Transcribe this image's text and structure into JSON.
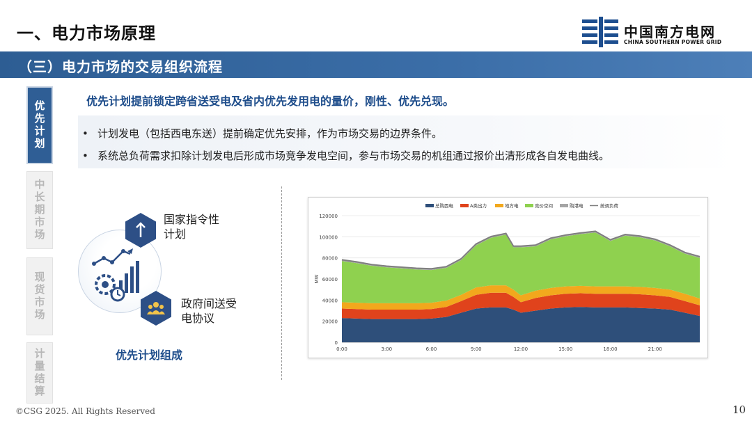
{
  "header": {
    "title": "一、电力市场原理",
    "logo_cn": "中国南方电网",
    "logo_en": "CHINA SOUTHERN POWER GRID"
  },
  "section": {
    "title": "（三）电力市场的交易组织流程"
  },
  "tabs": [
    {
      "label": "优先计划",
      "active": true
    },
    {
      "label": "中长期市场",
      "active": false
    },
    {
      "label": "现货市场",
      "active": false
    },
    {
      "label": "计量结算",
      "active": false
    }
  ],
  "headline": "优先计划提前锁定跨省送受电及省内优先发用电的量价，刚性、优先兑现。",
  "bullets": [
    {
      "dot": "•",
      "text": "计划发电（包括西电东送）提前确定优先安排，作为市场交易的边界条件。"
    },
    {
      "dot": "•",
      "text": "系统总负荷需求扣除计划发电后形成市场竞争发电空间，参与市场交易的机组通过报价出清形成各自发电曲线。"
    }
  ],
  "diagram": {
    "item1": "国家指令性计划",
    "item1_line1": "国家指令性",
    "item1_line2": "计划",
    "item2_line1": "政府间送受",
    "item2_line2": "电协议",
    "caption": "优先计划组成",
    "icons": [
      "up-arrow-icon",
      "analytics-gears-icon",
      "people-group-icon"
    ]
  },
  "chart_data": {
    "type": "area",
    "stacked": true,
    "x": [
      "0:00",
      "1:00",
      "2:00",
      "3:00",
      "4:00",
      "5:00",
      "6:00",
      "7:00",
      "8:00",
      "9:00",
      "10:00",
      "11:00",
      "11:30",
      "12:00",
      "13:00",
      "14:00",
      "15:00",
      "16:00",
      "17:00",
      "18:00",
      "19:00",
      "20:00",
      "21:00",
      "22:00",
      "23:00",
      "24:00"
    ],
    "xticks": [
      "0:00",
      "3:00",
      "6:00",
      "9:00",
      "12:00",
      "15:00",
      "18:00",
      "21:00"
    ],
    "ylabel": "MW",
    "yticks": [
      0,
      20000,
      40000,
      60000,
      80000,
      100000,
      120000
    ],
    "ylim": [
      0,
      120000
    ],
    "legend_position": "top",
    "series": [
      {
        "name": "总购西电",
        "color": "#2e4f7a",
        "values": [
          23000,
          22500,
          22000,
          22000,
          22000,
          22000,
          22500,
          24000,
          28000,
          32000,
          33000,
          33000,
          31000,
          28000,
          30000,
          32000,
          33000,
          33500,
          33000,
          33000,
          33000,
          32500,
          32000,
          31000,
          28000,
          25000
        ]
      },
      {
        "name": "A类出力",
        "color": "#e0431c",
        "values": [
          9000,
          9000,
          9000,
          9000,
          9000,
          9000,
          9000,
          9500,
          11000,
          13000,
          14000,
          14000,
          12000,
          10000,
          12000,
          12500,
          13000,
          13000,
          13000,
          13000,
          13000,
          13000,
          12500,
          12000,
          11000,
          10000
        ]
      },
      {
        "name": "地方电",
        "color": "#f2a81d",
        "values": [
          6000,
          6000,
          6000,
          6000,
          6000,
          6000,
          6000,
          6000,
          6000,
          7000,
          7000,
          7000,
          7000,
          6500,
          7000,
          7000,
          7000,
          7000,
          7000,
          7000,
          7000,
          7000,
          7000,
          7000,
          7000,
          6500
        ]
      },
      {
        "name": "竞价空间",
        "color": "#8fd14f",
        "values": [
          39000,
          37500,
          35500,
          34000,
          33000,
          32000,
          31000,
          31000,
          33000,
          40000,
          45000,
          48000,
          40000,
          45500,
          42000,
          46000,
          47500,
          49000,
          51000,
          43000,
          48000,
          47000,
          45000,
          41000,
          38000,
          38500
        ]
      },
      {
        "name": "购港电",
        "color": "#a5a5a5",
        "values": [
          1200,
          1200,
          1200,
          1200,
          1200,
          1200,
          1200,
          1200,
          1200,
          1200,
          1200,
          1200,
          1200,
          1200,
          1200,
          1200,
          1200,
          1200,
          1200,
          1200,
          1200,
          1200,
          1200,
          1200,
          1200,
          1200
        ]
      }
    ],
    "line_series": {
      "name": "统调负荷",
      "color": "#7f7f7f"
    }
  },
  "footer": {
    "copyright": "©CSG 2025. All Rights Reserved",
    "page": "10"
  }
}
